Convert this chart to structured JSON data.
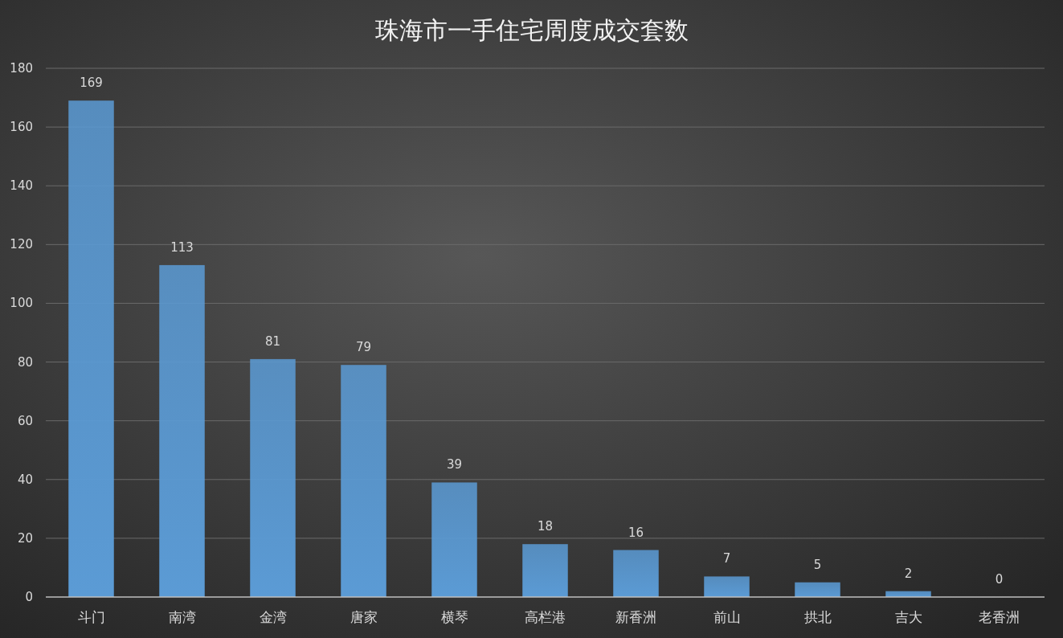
{
  "chart_data": {
    "type": "bar",
    "title": "珠海市一手住宅周度成交套数",
    "categories": [
      "斗门",
      "南湾",
      "金湾",
      "唐家",
      "横琴",
      "高栏港",
      "新香洲",
      "前山",
      "拱北",
      "吉大",
      "老香洲"
    ],
    "values": [
      169,
      113,
      81,
      79,
      39,
      18,
      16,
      7,
      5,
      2,
      0
    ],
    "color": "#5b9bd5",
    "ylim": [
      0,
      180
    ],
    "yticks": [
      0,
      20,
      40,
      60,
      80,
      100,
      120,
      140,
      160,
      180
    ],
    "grid": "y",
    "data_labels": true
  }
}
